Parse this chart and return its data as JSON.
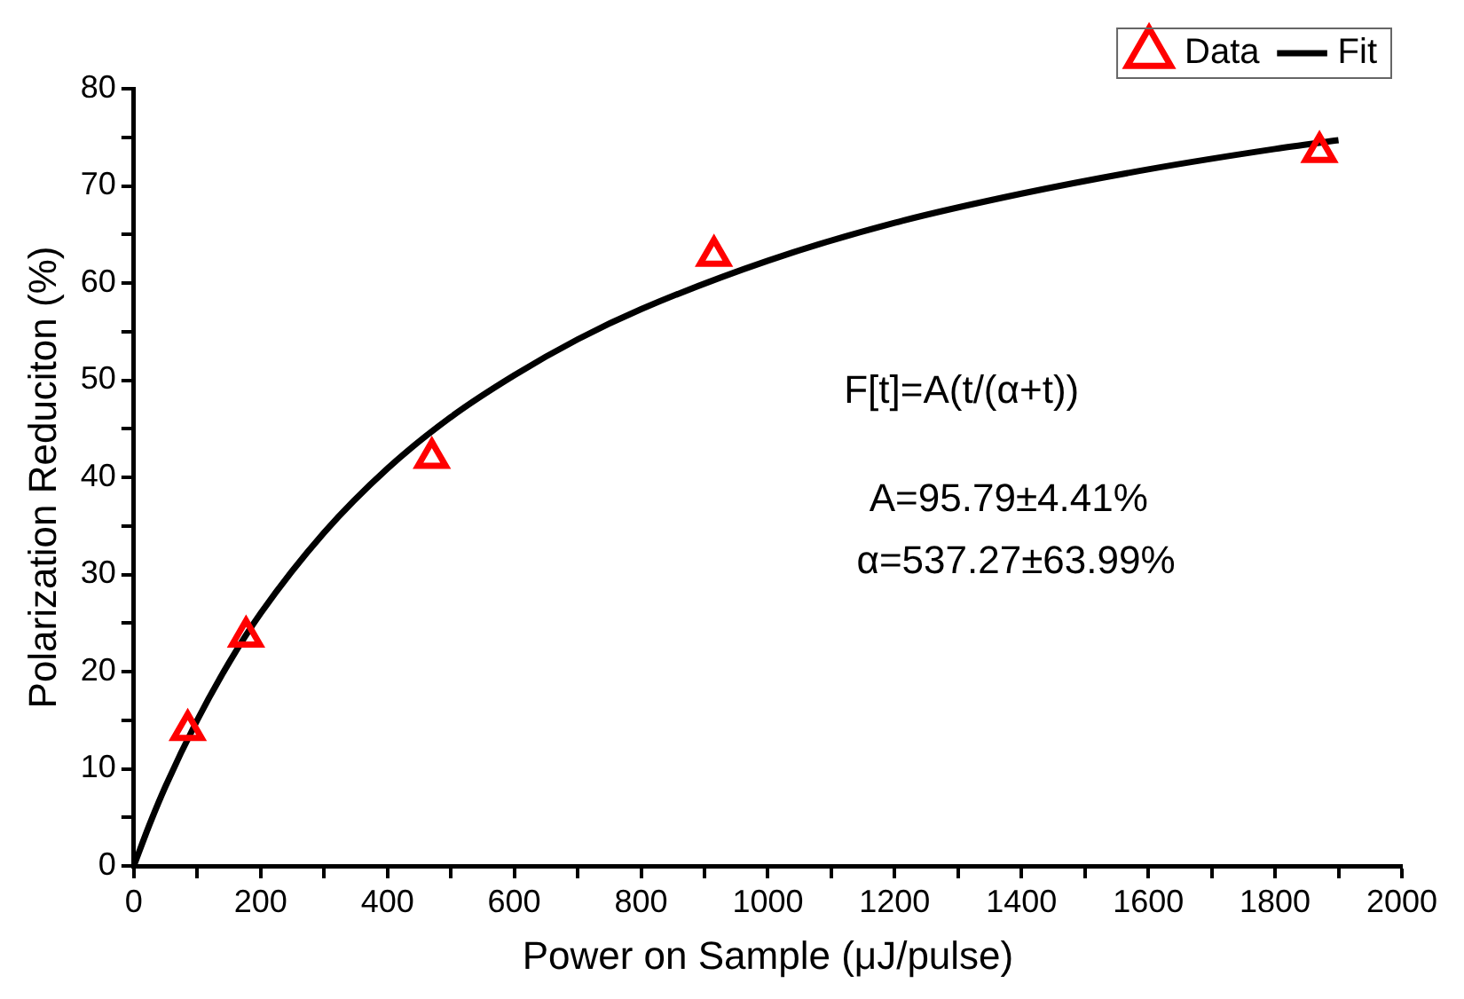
{
  "chart_data": {
    "type": "scatter",
    "xlabel": "Power on Sample (μJ/pulse)",
    "ylabel": "Polarization Reduciton (%)",
    "series": [
      {
        "name": "Data",
        "type": "scatter",
        "color": "#ff0000",
        "marker": "triangle",
        "x": [
          85,
          177,
          470,
          915,
          1870
        ],
        "values": [
          14,
          23.6,
          42,
          62.8,
          73.5
        ]
      },
      {
        "name": "Fit",
        "type": "line",
        "color": "#000000",
        "marker": "none",
        "line_style": "solid",
        "x": [
          0,
          25,
          50,
          100,
          150,
          200,
          300,
          400,
          500,
          600,
          700,
          800,
          1000,
          1200,
          1400,
          1600,
          1800,
          1900
        ],
        "values": [
          0,
          4.3,
          8.2,
          15,
          20.9,
          26,
          34.3,
          40.9,
          46.2,
          50.5,
          54.2,
          57.3,
          62.3,
          66.2,
          69.2,
          71.7,
          73.8,
          74.7
        ]
      }
    ],
    "xlim": [
      0,
      2000
    ],
    "xticks": [
      0,
      {
        "value": 100,
        "label": null
      },
      200,
      {
        "value": 300,
        "label": null
      },
      400,
      {
        "value": 500,
        "label": null
      },
      600,
      {
        "value": 700,
        "label": null
      },
      800,
      {
        "value": 900,
        "label": null
      },
      1000,
      {
        "value": 1100,
        "label": null
      },
      1200,
      {
        "value": 1300,
        "label": null
      },
      1400,
      {
        "value": 1500,
        "label": null
      },
      1600,
      {
        "value": 1700,
        "label": null
      },
      1800,
      {
        "value": 1900,
        "label": null
      },
      2000
    ],
    "ylim": [
      0,
      80
    ],
    "yticks": [
      0,
      {
        "value": 5,
        "label": null
      },
      10,
      {
        "value": 15,
        "label": null
      },
      20,
      {
        "value": 25,
        "label": null
      },
      30,
      {
        "value": 35,
        "label": null
      },
      40,
      {
        "value": 45,
        "label": null
      },
      50,
      {
        "value": 55,
        "label": null
      },
      60,
      {
        "value": 65,
        "label": null
      },
      70,
      {
        "value": 75,
        "label": null
      },
      80
    ],
    "grid": false,
    "legend": "top right",
    "annotations": [
      "F[t]=A(t/(α+t))",
      "A=95.79±4.41%",
      "α=537.27±63.99%"
    ]
  }
}
